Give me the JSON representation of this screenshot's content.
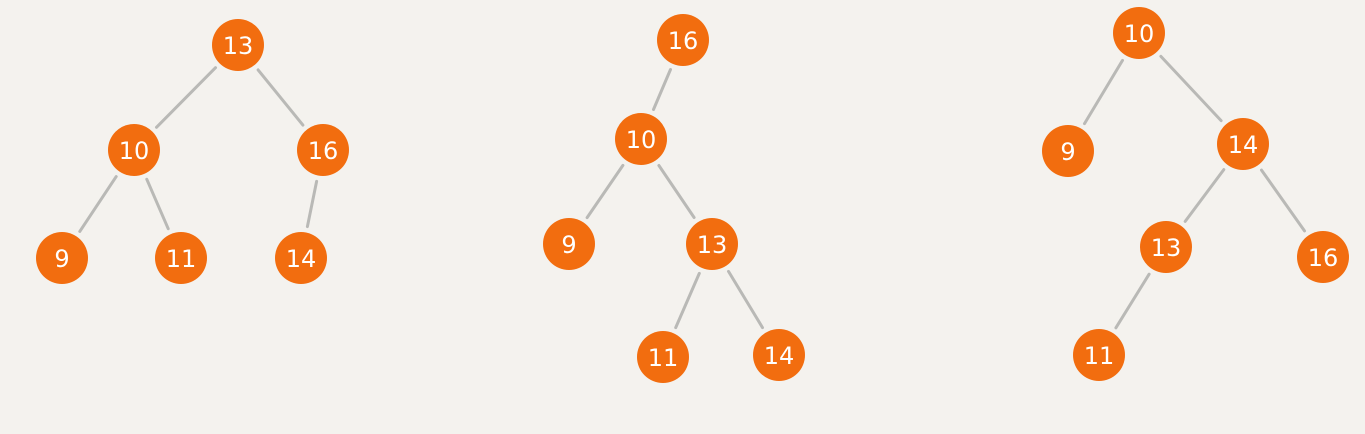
{
  "colors": {
    "background": "#f4f2ee",
    "node_fill": "#f26d0f",
    "node_text": "#ffffff",
    "edge": "#b9b9b6"
  },
  "trees": [
    {
      "name": "tree-1",
      "nodes": [
        {
          "id": "t1-13",
          "label": "13"
        },
        {
          "id": "t1-10",
          "label": "10"
        },
        {
          "id": "t1-16",
          "label": "16"
        },
        {
          "id": "t1-9",
          "label": "9"
        },
        {
          "id": "t1-11",
          "label": "11"
        },
        {
          "id": "t1-14",
          "label": "14"
        }
      ],
      "edges": [
        [
          "t1-13",
          "t1-10"
        ],
        [
          "t1-13",
          "t1-16"
        ],
        [
          "t1-10",
          "t1-9"
        ],
        [
          "t1-10",
          "t1-11"
        ],
        [
          "t1-16",
          "t1-14"
        ]
      ]
    },
    {
      "name": "tree-2",
      "nodes": [
        {
          "id": "t2-16",
          "label": "16"
        },
        {
          "id": "t2-10",
          "label": "10"
        },
        {
          "id": "t2-9",
          "label": "9"
        },
        {
          "id": "t2-13",
          "label": "13"
        },
        {
          "id": "t2-11",
          "label": "11"
        },
        {
          "id": "t2-14",
          "label": "14"
        }
      ],
      "edges": [
        [
          "t2-16",
          "t2-10"
        ],
        [
          "t2-10",
          "t2-9"
        ],
        [
          "t2-10",
          "t2-13"
        ],
        [
          "t2-13",
          "t2-11"
        ],
        [
          "t2-13",
          "t2-14"
        ]
      ]
    },
    {
      "name": "tree-3",
      "nodes": [
        {
          "id": "t3-10",
          "label": "10"
        },
        {
          "id": "t3-9",
          "label": "9"
        },
        {
          "id": "t3-14",
          "label": "14"
        },
        {
          "id": "t3-13",
          "label": "13"
        },
        {
          "id": "t3-16",
          "label": "16"
        },
        {
          "id": "t3-11",
          "label": "11"
        }
      ],
      "edges": [
        [
          "t3-10",
          "t3-9"
        ],
        [
          "t3-10",
          "t3-14"
        ],
        [
          "t3-14",
          "t3-13"
        ],
        [
          "t3-14",
          "t3-16"
        ],
        [
          "t3-13",
          "t3-11"
        ]
      ]
    }
  ]
}
